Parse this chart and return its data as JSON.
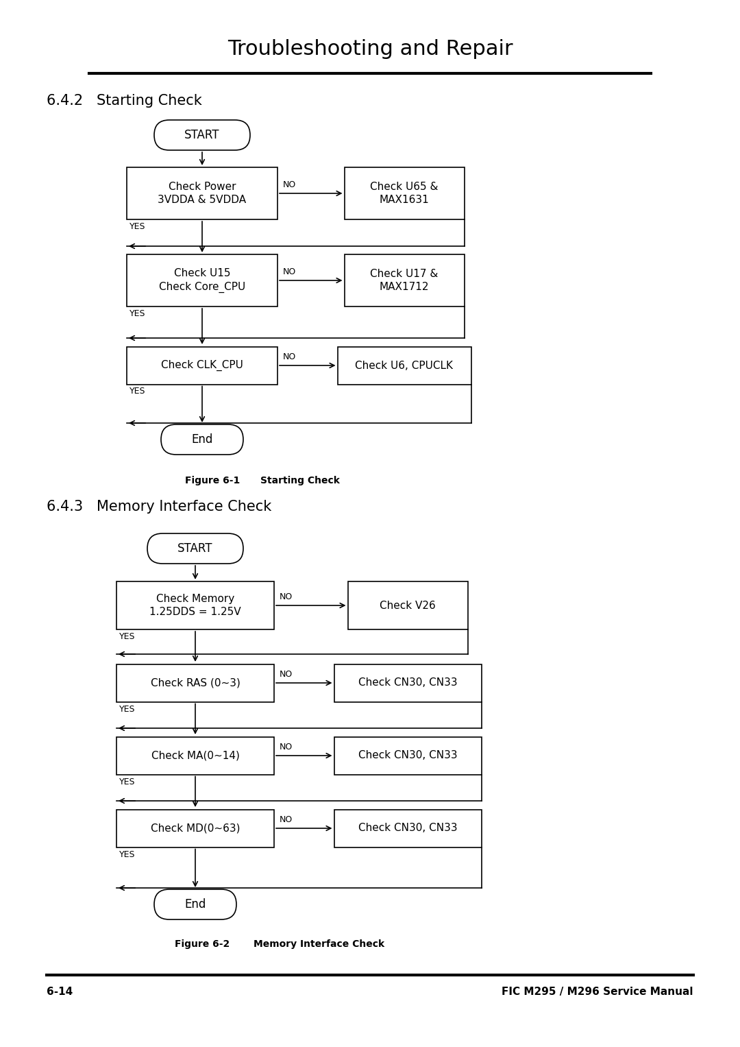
{
  "page_title": "Troubleshooting and Repair",
  "page_number": "6-14",
  "page_footer": "FIC M295 / M296 Service Manual",
  "section1_title": "6.4.2   Starting Check",
  "section2_title": "6.4.3   Memory Interface Check",
  "fig1_label": "Figure 6-1",
  "fig1_caption": "Starting Check",
  "fig2_label": "Figure 6-2",
  "fig2_caption": "Memory Interface Check",
  "bg_color": "#ffffff",
  "box_edge": "#000000",
  "text_color": "#000000"
}
